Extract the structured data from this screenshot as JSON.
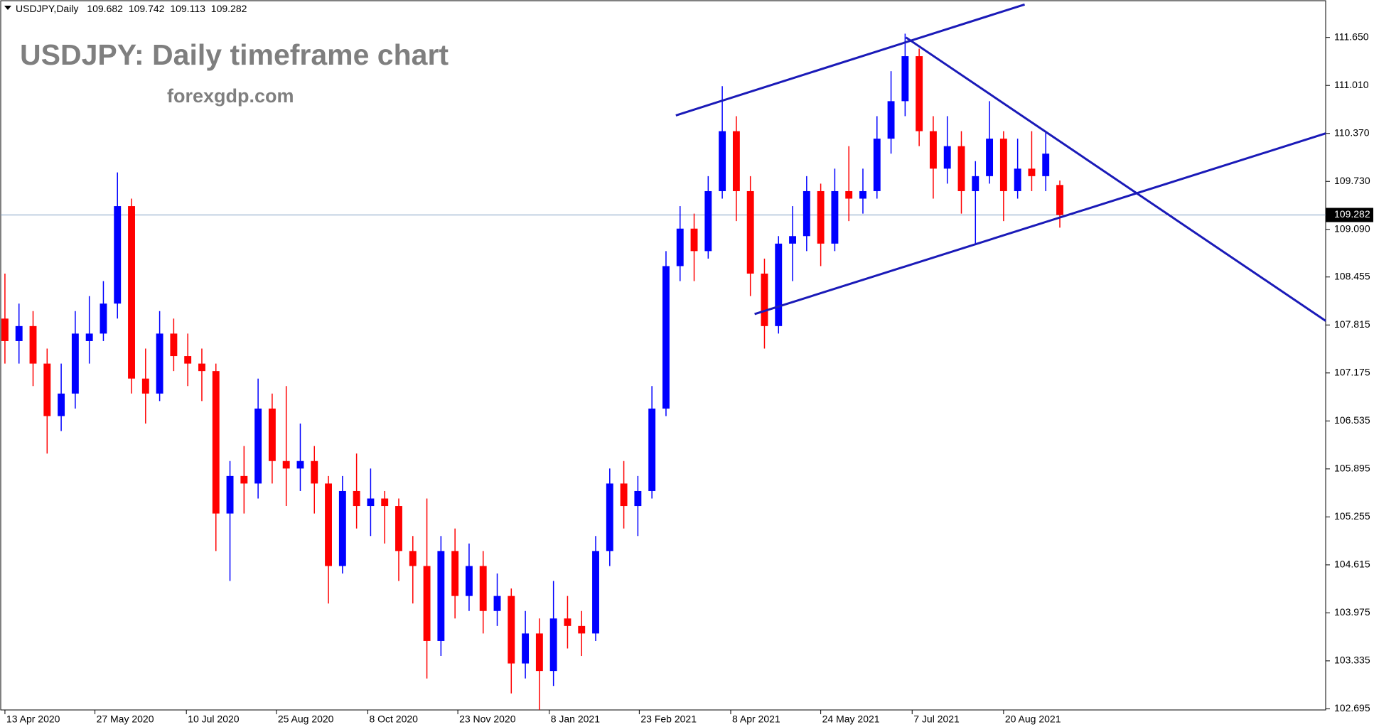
{
  "chart_data": {
    "type": "candlestick",
    "symbol": "USDJPY,Daily",
    "title": "USDJPY: Daily timeframe chart",
    "subtitle": "forexgdp.com",
    "up_color": "#0000ff",
    "down_color": "#ff0000",
    "trendline_color": "#1a1ab8",
    "last_price": 109.282,
    "last_price_color": "#7a9cc0",
    "ylim": [
      102.68,
      112.14
    ],
    "yticks": [
      {
        "value": 111.65,
        "label": "111.650"
      },
      {
        "value": 111.01,
        "label": "111.010"
      },
      {
        "value": 110.37,
        "label": "110.370"
      },
      {
        "value": 109.73,
        "label": "109.730"
      },
      {
        "value": 109.09,
        "label": "109.090"
      },
      108.455,
      107.815,
      107.175,
      106.535,
      105.895,
      105.255,
      104.615,
      103.975,
      103.335,
      102.695
    ],
    "xlim": [
      -0.3,
      93.9
    ],
    "xticks": [
      {
        "value": 0,
        "label": "13 Apr 2020"
      },
      {
        "value": 6.4,
        "label": "27 May 2020"
      },
      {
        "value": 12.9,
        "label": "10 Jul 2020"
      },
      {
        "value": 19.3,
        "label": "25 Aug 2020"
      },
      {
        "value": 25.8,
        "label": "8 Oct 2020"
      },
      {
        "value": 32.2,
        "label": "23 Nov 2020"
      },
      {
        "value": 38.7,
        "label": "8 Jan 2021"
      },
      {
        "value": 45.1,
        "label": "23 Feb 2021"
      },
      {
        "value": 51.6,
        "label": "8 Apr 2021"
      },
      {
        "value": 58,
        "label": "24 May 2021"
      },
      {
        "value": 64.5,
        "label": "7 Jul 2021"
      },
      {
        "value": 71,
        "label": "20 Aug 2021"
      }
    ],
    "values": [
      [
        107.9,
        108.5,
        107.3,
        107.6
      ],
      [
        107.6,
        108.1,
        107.3,
        107.8
      ],
      [
        107.8,
        108.0,
        107.0,
        107.3
      ],
      [
        107.3,
        107.5,
        106.1,
        106.6
      ],
      [
        106.6,
        107.3,
        106.4,
        106.9
      ],
      [
        106.9,
        108.0,
        106.7,
        107.7
      ],
      [
        107.6,
        108.2,
        107.3,
        107.7
      ],
      [
        107.7,
        108.4,
        107.6,
        108.1
      ],
      [
        108.1,
        109.85,
        107.9,
        109.4
      ],
      [
        109.4,
        109.5,
        106.9,
        107.1
      ],
      [
        107.1,
        107.5,
        106.5,
        106.9
      ],
      [
        106.9,
        108.0,
        106.8,
        107.7
      ],
      [
        107.7,
        107.9,
        107.2,
        107.4
      ],
      [
        107.4,
        107.7,
        107.0,
        107.3
      ],
      [
        107.3,
        107.5,
        106.8,
        107.2
      ],
      [
        107.2,
        107.3,
        104.8,
        105.3
      ],
      [
        105.3,
        106.0,
        104.4,
        105.8
      ],
      [
        105.8,
        106.2,
        105.3,
        105.7
      ],
      [
        105.7,
        107.1,
        105.5,
        106.7
      ],
      [
        106.7,
        106.9,
        105.7,
        106.0
      ],
      [
        106.0,
        107.0,
        105.4,
        105.9
      ],
      [
        105.9,
        106.5,
        105.6,
        106.0
      ],
      [
        106.0,
        106.2,
        105.3,
        105.7
      ],
      [
        105.7,
        105.8,
        104.1,
        104.6
      ],
      [
        104.6,
        105.8,
        104.5,
        105.6
      ],
      [
        105.6,
        106.1,
        105.1,
        105.4
      ],
      [
        105.4,
        105.9,
        105.0,
        105.5
      ],
      [
        105.5,
        105.6,
        104.9,
        105.4
      ],
      [
        105.4,
        105.5,
        104.4,
        104.8
      ],
      [
        104.8,
        105.0,
        104.1,
        104.6
      ],
      [
        104.6,
        105.5,
        103.1,
        103.6
      ],
      [
        103.6,
        105.0,
        103.4,
        104.8
      ],
      [
        104.8,
        105.1,
        103.9,
        104.2
      ],
      [
        104.2,
        104.9,
        104.0,
        104.6
      ],
      [
        104.6,
        104.8,
        103.7,
        104.0
      ],
      [
        104.0,
        104.5,
        103.8,
        104.2
      ],
      [
        104.2,
        104.3,
        102.9,
        103.3
      ],
      [
        103.3,
        104.0,
        103.1,
        103.7
      ],
      [
        103.7,
        103.9,
        102.68,
        103.2
      ],
      [
        103.2,
        104.4,
        103.0,
        103.9
      ],
      [
        103.9,
        104.2,
        103.5,
        103.8
      ],
      [
        103.8,
        104.0,
        103.4,
        103.7
      ],
      [
        103.7,
        105.0,
        103.6,
        104.8
      ],
      [
        104.8,
        105.9,
        104.6,
        105.7
      ],
      [
        105.7,
        106.0,
        105.1,
        105.4
      ],
      [
        105.4,
        105.8,
        105.0,
        105.6
      ],
      [
        105.6,
        107.0,
        105.5,
        106.7
      ],
      [
        106.7,
        108.8,
        106.6,
        108.6
      ],
      [
        108.6,
        109.4,
        108.4,
        109.1
      ],
      [
        109.1,
        109.3,
        108.4,
        108.8
      ],
      [
        108.8,
        109.8,
        108.7,
        109.6
      ],
      [
        109.6,
        111.0,
        109.5,
        110.4
      ],
      [
        110.4,
        110.6,
        109.2,
        109.6
      ],
      [
        109.6,
        109.8,
        108.2,
        108.5
      ],
      [
        108.5,
        108.7,
        107.5,
        107.8
      ],
      [
        107.8,
        109.0,
        107.7,
        108.9
      ],
      [
        108.9,
        109.4,
        108.4,
        109.0
      ],
      [
        109.0,
        109.8,
        108.8,
        109.6
      ],
      [
        109.6,
        109.7,
        108.6,
        108.9
      ],
      [
        108.9,
        109.9,
        108.8,
        109.6
      ],
      [
        109.6,
        110.2,
        109.2,
        109.5
      ],
      [
        109.5,
        109.9,
        109.3,
        109.6
      ],
      [
        109.6,
        110.6,
        109.5,
        110.3
      ],
      [
        110.3,
        111.2,
        110.1,
        110.8
      ],
      [
        110.8,
        111.7,
        110.6,
        111.4
      ],
      [
        111.4,
        111.5,
        110.2,
        110.4
      ],
      [
        110.4,
        110.6,
        109.5,
        109.9
      ],
      [
        109.9,
        110.6,
        109.7,
        110.2
      ],
      [
        110.2,
        110.4,
        109.3,
        109.6
      ],
      [
        109.6,
        110.0,
        108.9,
        109.8
      ],
      [
        109.8,
        110.8,
        109.7,
        110.3
      ],
      [
        110.3,
        110.4,
        109.2,
        109.6
      ],
      [
        109.6,
        110.3,
        109.5,
        109.9
      ],
      [
        109.9,
        110.4,
        109.6,
        109.8
      ],
      [
        109.8,
        110.4,
        109.6,
        110.1
      ],
      [
        109.682,
        109.742,
        109.113,
        109.282
      ]
    ],
    "trendlines": [
      {
        "x": [
          47.7,
          72.5
        ],
        "y": [
          110.61,
          112.09
        ]
      },
      {
        "x": [
          64.06,
          93.9
        ],
        "y": [
          111.65,
          107.87
        ]
      },
      {
        "x": [
          53.3,
          93.9
        ],
        "y": [
          107.96,
          110.37
        ]
      }
    ]
  }
}
